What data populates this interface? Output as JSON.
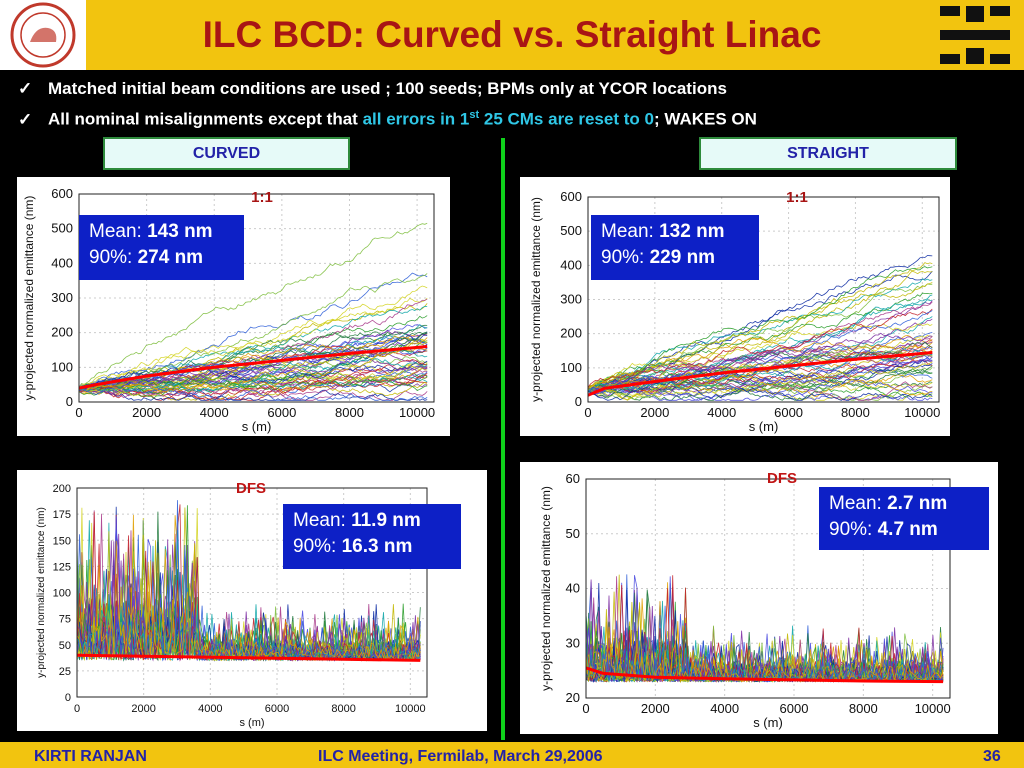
{
  "title": "ILC BCD: Curved vs. Straight Linac",
  "bullets": [
    {
      "text": "Matched initial beam conditions are used ; 100 seeds; BPMs only at YCOR locations"
    },
    {
      "prefix": "All nominal misalignments except that ",
      "highlight_a": "all errors in 1",
      "sup": "st",
      "highlight_b": " 25 CMs are reset to 0",
      "suffix": "; WAKES ON"
    }
  ],
  "headers": {
    "left": "CURVED",
    "right": "STRAIGHT"
  },
  "panels": {
    "curved_11": {
      "label": "1:1",
      "mean_label": "Mean: ",
      "mean": "143 nm",
      "p90_label": "90%: ",
      "p90": "274 nm",
      "ylabel": "y-projected normalized emittance (nm)",
      "xlabel": "s (m)"
    },
    "straight_11": {
      "label": "1:1",
      "mean_label": "Mean: ",
      "mean": "132 nm",
      "p90_label": "90%: ",
      "p90": "229 nm",
      "ylabel": "y-projected normalized emittance (nm)",
      "xlabel": "s (m)"
    },
    "curved_dfs": {
      "label": "DFS",
      "mean_label": "Mean: ",
      "mean": "11.9 nm",
      "p90_label": "90%: ",
      "p90": "16.3 nm",
      "ylabel": "y-projected normalized emittance (nm)",
      "xlabel": "s (m)"
    },
    "straight_dfs": {
      "label": "DFS",
      "mean_label": "Mean: ",
      "mean": "2.7 nm",
      "p90_label": "90%: ",
      "p90": "4.7 nm",
      "ylabel": "y-projected normalized emittance (nm)",
      "xlabel": "s (m)"
    }
  },
  "chart_data": [
    {
      "type": "line",
      "panel": "curved_11",
      "xlim": [
        0,
        10500
      ],
      "ylim": [
        0,
        600
      ],
      "xticks": [
        0,
        2000,
        4000,
        6000,
        8000,
        10000
      ],
      "yticks": [
        0,
        100,
        200,
        300,
        400,
        500,
        600
      ],
      "mean_curve": {
        "x": [
          0,
          500,
          2000,
          4000,
          6000,
          8000,
          10300
        ],
        "y": [
          40,
          50,
          75,
          100,
          120,
          140,
          160
        ]
      }
    },
    {
      "type": "line",
      "panel": "straight_11",
      "xlim": [
        0,
        10500
      ],
      "ylim": [
        0,
        600
      ],
      "xticks": [
        0,
        2000,
        4000,
        6000,
        8000,
        10000
      ],
      "yticks": [
        0,
        100,
        200,
        300,
        400,
        500,
        600
      ],
      "mean_curve": {
        "x": [
          0,
          500,
          2000,
          4000,
          6000,
          8000,
          10300
        ],
        "y": [
          20,
          40,
          60,
          85,
          105,
          125,
          145
        ]
      }
    },
    {
      "type": "line",
      "panel": "curved_dfs",
      "xlim": [
        0,
        10500
      ],
      "ylim": [
        0,
        200
      ],
      "xticks": [
        0,
        2000,
        4000,
        6000,
        8000,
        10000
      ],
      "yticks": [
        0,
        25,
        50,
        75,
        100,
        125,
        150,
        175,
        200
      ],
      "mean_curve": {
        "x": [
          0,
          10300
        ],
        "y": [
          40,
          35
        ]
      }
    },
    {
      "type": "line",
      "panel": "straight_dfs",
      "xlim": [
        0,
        10500
      ],
      "ylim": [
        20,
        60
      ],
      "xticks": [
        0,
        2000,
        4000,
        6000,
        8000,
        10000
      ],
      "yticks": [
        20,
        30,
        40,
        50,
        60
      ],
      "mean_curve": {
        "x": [
          0,
          500,
          2000,
          4000,
          6000,
          8000,
          10300
        ],
        "y": [
          25.5,
          24.5,
          23.8,
          23.5,
          23.3,
          23.1,
          23
        ]
      }
    }
  ],
  "footer": {
    "author": "KIRTI  RANJAN",
    "event": "ILC Meeting, Fermilab, March 29,2006",
    "page": "36"
  },
  "colors": {
    "title": "#a81515",
    "band": "#f2c40f",
    "box": "#0d20c6",
    "mean_line": "#ff0000",
    "divider": "#0fd21b"
  }
}
